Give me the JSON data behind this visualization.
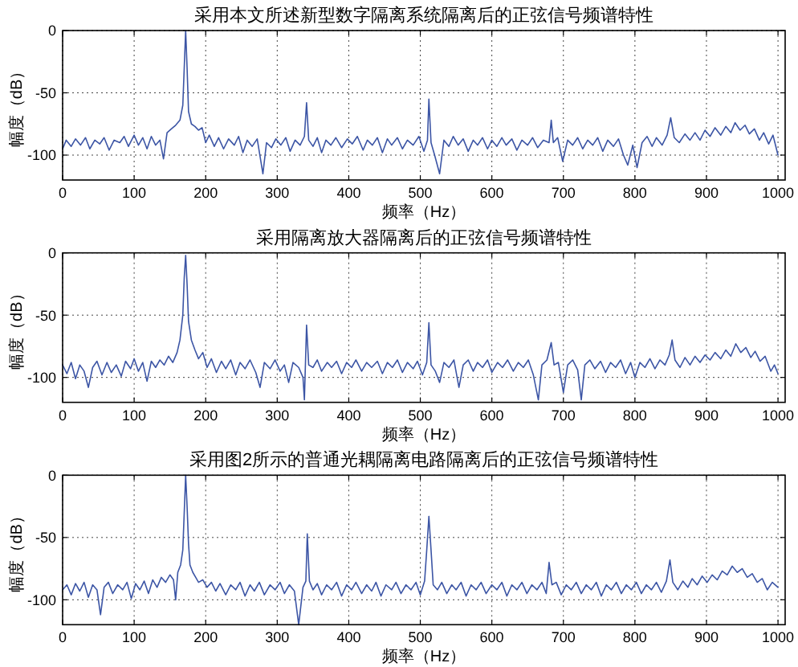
{
  "chart_data": [
    {
      "type": "line",
      "title": "采用本文所述新型数字隔离系统隔离后的正弦信号频谱特性",
      "xlabel": "频率（Hz）",
      "ylabel": "幅度（dB）",
      "xlim": [
        0,
        1010
      ],
      "ylim": [
        -120,
        0
      ],
      "xticks": [
        0,
        100,
        200,
        300,
        400,
        500,
        600,
        700,
        800,
        900,
        1000
      ],
      "yticks": [
        -100,
        -50,
        0
      ],
      "grid": true,
      "x": [
        0,
        5,
        12,
        18,
        25,
        32,
        38,
        45,
        52,
        58,
        65,
        72,
        80,
        86,
        92,
        100,
        106,
        112,
        118,
        124,
        130,
        136,
        141,
        146,
        152,
        158,
        164,
        168,
        170,
        172,
        174,
        176,
        180,
        185,
        190,
        195,
        200,
        205,
        212,
        218,
        225,
        232,
        240,
        246,
        252,
        258,
        265,
        272,
        280,
        285,
        292,
        298,
        305,
        312,
        318,
        325,
        332,
        338,
        341,
        344,
        350,
        356,
        362,
        368,
        375,
        382,
        390,
        398,
        405,
        412,
        420,
        426,
        433,
        440,
        447,
        454,
        460,
        468,
        475,
        482,
        490,
        498,
        505,
        510,
        512,
        515,
        520,
        527,
        533,
        540,
        546,
        553,
        560,
        567,
        574,
        580,
        587,
        594,
        600,
        607,
        614,
        620,
        628,
        635,
        642,
        650,
        657,
        664,
        672,
        680,
        683,
        686,
        692,
        699,
        706,
        713,
        720,
        727,
        734,
        741,
        748,
        755,
        762,
        770,
        777,
        784,
        790,
        797,
        803,
        810,
        817,
        824,
        830,
        838,
        845,
        850,
        855,
        862,
        870,
        877,
        884,
        891,
        898,
        905,
        912,
        920,
        927,
        934,
        940,
        947,
        954,
        960,
        967,
        974,
        980,
        987,
        993,
        1000
      ],
      "series": [
        {
          "color": "#3c55a5",
          "values": [
            -95,
            -88,
            -93,
            -87,
            -92,
            -86,
            -95,
            -88,
            -91,
            -86,
            -96,
            -88,
            -90,
            -85,
            -93,
            -84,
            -92,
            -86,
            -95,
            -85,
            -92,
            -88,
            -103,
            -82,
            -79,
            -76,
            -72,
            -60,
            -30,
            0,
            -30,
            -65,
            -75,
            -77,
            -80,
            -78,
            -90,
            -84,
            -93,
            -86,
            -95,
            -87,
            -92,
            -85,
            -98,
            -88,
            -93,
            -87,
            -115,
            -90,
            -94,
            -87,
            -92,
            -86,
            -97,
            -88,
            -92,
            -85,
            -58,
            -88,
            -93,
            -86,
            -98,
            -88,
            -92,
            -86,
            -94,
            -87,
            -91,
            -85,
            -96,
            -88,
            -92,
            -86,
            -98,
            -87,
            -92,
            -86,
            -95,
            -88,
            -92,
            -85,
            -97,
            -88,
            -55,
            -90,
            -100,
            -115,
            -88,
            -93,
            -85,
            -92,
            -87,
            -97,
            -88,
            -92,
            -86,
            -95,
            -88,
            -93,
            -86,
            -92,
            -87,
            -96,
            -88,
            -92,
            -86,
            -94,
            -88,
            -90,
            -72,
            -90,
            -86,
            -105,
            -88,
            -92,
            -86,
            -95,
            -88,
            -92,
            -86,
            -97,
            -88,
            -93,
            -87,
            -100,
            -108,
            -92,
            -110,
            -90,
            -85,
            -93,
            -86,
            -92,
            -84,
            -70,
            -86,
            -90,
            -83,
            -88,
            -82,
            -88,
            -80,
            -85,
            -78,
            -84,
            -77,
            -82,
            -74,
            -80,
            -76,
            -83,
            -79,
            -88,
            -82,
            -91,
            -84,
            -100
          ]
        }
      ]
    },
    {
      "type": "line",
      "title": "采用隔离放大器隔离后的正弦信号频谱特性",
      "xlabel": "频率（Hz）",
      "ylabel": "幅度（dB）",
      "xlim": [
        0,
        1010
      ],
      "ylim": [
        -120,
        0
      ],
      "xticks": [
        0,
        100,
        200,
        300,
        400,
        500,
        600,
        700,
        800,
        900,
        1000
      ],
      "yticks": [
        -100,
        -50,
        0
      ],
      "grid": true,
      "x": [
        0,
        6,
        12,
        18,
        24,
        30,
        36,
        42,
        48,
        55,
        62,
        68,
        75,
        82,
        88,
        95,
        100,
        106,
        112,
        118,
        124,
        130,
        136,
        142,
        148,
        154,
        160,
        164,
        168,
        170,
        172,
        174,
        176,
        180,
        185,
        190,
        196,
        202,
        208,
        215,
        222,
        228,
        235,
        242,
        248,
        255,
        262,
        270,
        276,
        282,
        290,
        297,
        304,
        310,
        316,
        322,
        330,
        336,
        338,
        341,
        344,
        350,
        356,
        362,
        370,
        376,
        383,
        390,
        397,
        404,
        410,
        418,
        425,
        432,
        440,
        447,
        454,
        461,
        468,
        475,
        482,
        490,
        496,
        503,
        509,
        512,
        515,
        521,
        527,
        533,
        540,
        547,
        554,
        560,
        567,
        574,
        580,
        587,
        594,
        600,
        608,
        615,
        622,
        630,
        637,
        644,
        651,
        658,
        665,
        670,
        677,
        683,
        687,
        693,
        700,
        706,
        713,
        720,
        725,
        730,
        737,
        744,
        752,
        759,
        766,
        773,
        780,
        787,
        794,
        800,
        807,
        814,
        821,
        828,
        835,
        842,
        848,
        852,
        856,
        863,
        870,
        877,
        884,
        891,
        898,
        905,
        912,
        920,
        927,
        934,
        941,
        948,
        955,
        962,
        968,
        975,
        982,
        990,
        995,
        1000
      ],
      "series": [
        {
          "color": "#3c55a5",
          "values": [
            -90,
            -97,
            -88,
            -101,
            -90,
            -95,
            -108,
            -92,
            -87,
            -98,
            -88,
            -96,
            -90,
            -99,
            -87,
            -93,
            -85,
            -95,
            -88,
            -103,
            -87,
            -92,
            -86,
            -90,
            -83,
            -88,
            -80,
            -70,
            -50,
            -20,
            -2,
            -25,
            -55,
            -70,
            -78,
            -85,
            -80,
            -92,
            -85,
            -96,
            -87,
            -93,
            -86,
            -98,
            -88,
            -93,
            -86,
            -96,
            -108,
            -88,
            -93,
            -86,
            -95,
            -90,
            -104,
            -88,
            -92,
            -100,
            -118,
            -58,
            -90,
            -92,
            -86,
            -95,
            -88,
            -92,
            -87,
            -97,
            -88,
            -92,
            -86,
            -95,
            -88,
            -92,
            -87,
            -97,
            -88,
            -92,
            -86,
            -96,
            -88,
            -93,
            -87,
            -98,
            -88,
            -56,
            -90,
            -95,
            -104,
            -88,
            -92,
            -86,
            -108,
            -90,
            -86,
            -95,
            -88,
            -92,
            -86,
            -96,
            -88,
            -92,
            -86,
            -95,
            -88,
            -92,
            -86,
            -98,
            -118,
            -90,
            -86,
            -72,
            -90,
            -88,
            -112,
            -90,
            -86,
            -94,
            -118,
            -90,
            -86,
            -93,
            -87,
            -96,
            -88,
            -92,
            -86,
            -97,
            -88,
            -100,
            -88,
            -92,
            -85,
            -93,
            -86,
            -90,
            -82,
            -70,
            -86,
            -92,
            -84,
            -90,
            -83,
            -88,
            -82,
            -86,
            -80,
            -85,
            -78,
            -83,
            -73,
            -80,
            -76,
            -84,
            -79,
            -87,
            -83,
            -95,
            -90,
            -97
          ]
        }
      ]
    },
    {
      "type": "line",
      "title": "采用图2所示的普通光耦隔离电路隔离后的正弦信号频谱特性",
      "xlabel": "频率（Hz）",
      "ylabel": "幅度（dB）",
      "xlim": [
        0,
        1010
      ],
      "ylim": [
        -120,
        0
      ],
      "xticks": [
        0,
        100,
        200,
        300,
        400,
        500,
        600,
        700,
        800,
        900,
        1000
      ],
      "yticks": [
        -100,
        -50,
        0
      ],
      "grid": true,
      "x": [
        0,
        6,
        12,
        18,
        24,
        30,
        36,
        42,
        48,
        53,
        58,
        64,
        70,
        77,
        84,
        90,
        96,
        102,
        108,
        114,
        120,
        126,
        132,
        138,
        144,
        150,
        155,
        158,
        161,
        165,
        168,
        170,
        172,
        174,
        176,
        178,
        182,
        186,
        190,
        196,
        202,
        208,
        214,
        220,
        228,
        235,
        242,
        248,
        255,
        262,
        268,
        275,
        282,
        290,
        297,
        304,
        310,
        317,
        324,
        330,
        336,
        340,
        342,
        345,
        350,
        356,
        362,
        369,
        376,
        383,
        390,
        397,
        404,
        410,
        418,
        425,
        432,
        438,
        445,
        452,
        460,
        466,
        473,
        480,
        487,
        494,
        500,
        506,
        509,
        512,
        515,
        518,
        524,
        530,
        537,
        544,
        550,
        557,
        564,
        571,
        578,
        585,
        592,
        600,
        607,
        614,
        621,
        628,
        635,
        642,
        649,
        656,
        663,
        670,
        676,
        680,
        684,
        690,
        697,
        704,
        711,
        718,
        725,
        732,
        739,
        746,
        753,
        760,
        767,
        774,
        781,
        788,
        795,
        802,
        809,
        816,
        823,
        830,
        837,
        844,
        849,
        853,
        860,
        867,
        874,
        880,
        887,
        894,
        901,
        908,
        915,
        922,
        929,
        936,
        943,
        950,
        957,
        964,
        971,
        978,
        985,
        992,
        1000
      ],
      "series": [
        {
          "color": "#3c55a5",
          "values": [
            -92,
            -88,
            -96,
            -87,
            -93,
            -86,
            -98,
            -88,
            -92,
            -112,
            -90,
            -86,
            -95,
            -88,
            -92,
            -86,
            -99,
            -87,
            -92,
            -85,
            -95,
            -84,
            -90,
            -82,
            -86,
            -80,
            -84,
            -100,
            -78,
            -72,
            -60,
            -30,
            0,
            -25,
            -55,
            -72,
            -78,
            -82,
            -86,
            -84,
            -90,
            -86,
            -93,
            -87,
            -96,
            -88,
            -92,
            -86,
            -97,
            -88,
            -93,
            -86,
            -96,
            -88,
            -92,
            -86,
            -95,
            -88,
            -93,
            -120,
            -90,
            -85,
            -47,
            -85,
            -92,
            -87,
            -96,
            -88,
            -92,
            -86,
            -97,
            -88,
            -92,
            -86,
            -95,
            -88,
            -93,
            -86,
            -97,
            -88,
            -92,
            -86,
            -95,
            -88,
            -92,
            -86,
            -96,
            -85,
            -60,
            -33,
            -60,
            -88,
            -92,
            -86,
            -95,
            -88,
            -92,
            -86,
            -97,
            -88,
            -92,
            -86,
            -95,
            -88,
            -92,
            -86,
            -97,
            -88,
            -92,
            -86,
            -95,
            -88,
            -92,
            -86,
            -95,
            -70,
            -88,
            -86,
            -96,
            -88,
            -92,
            -86,
            -95,
            -88,
            -92,
            -86,
            -97,
            -88,
            -92,
            -86,
            -95,
            -88,
            -92,
            -86,
            -95,
            -88,
            -92,
            -86,
            -94,
            -85,
            -68,
            -86,
            -92,
            -85,
            -90,
            -83,
            -88,
            -81,
            -86,
            -80,
            -84,
            -77,
            -80,
            -73,
            -78,
            -75,
            -82,
            -79,
            -86,
            -83,
            -92,
            -86,
            -90
          ]
        }
      ]
    }
  ]
}
